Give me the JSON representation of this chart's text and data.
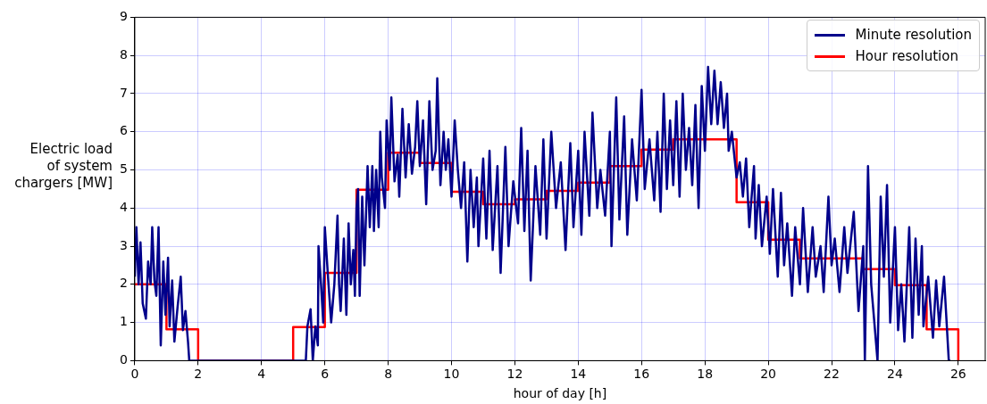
{
  "chart_data": {
    "type": "line",
    "xlabel": "hour of day [h]",
    "ylabel": "Electric load\nof system\nchargers [MW]",
    "xlim": [
      0,
      26.85
    ],
    "xticks": [
      0,
      2,
      4,
      6,
      8,
      10,
      12,
      14,
      16,
      18,
      20,
      22,
      24,
      26
    ],
    "ylim": [
      0,
      9
    ],
    "yticks": [
      0,
      1,
      2,
      3,
      4,
      5,
      6,
      7,
      8,
      9
    ],
    "grid": true,
    "legend": "top right",
    "series": [
      {
        "name": "Minute resolution",
        "color": "#00008b",
        "x": [
          0,
          0.05,
          0.12,
          0.18,
          0.25,
          0.35,
          0.42,
          0.5,
          0.55,
          0.62,
          0.68,
          0.75,
          0.82,
          0.9,
          0.97,
          1.05,
          1.1,
          1.18,
          1.25,
          1.35,
          1.45,
          1.52,
          1.6,
          1.68,
          1.72,
          5.4,
          5.45,
          5.55,
          5.62,
          5.7,
          5.78,
          5.8,
          5.88,
          5.95,
          6.0,
          6.1,
          6.2,
          6.3,
          6.4,
          6.45,
          6.5,
          6.6,
          6.68,
          6.75,
          6.82,
          6.9,
          6.95,
          7.0,
          7.05,
          7.1,
          7.18,
          7.25,
          7.35,
          7.42,
          7.5,
          7.55,
          7.62,
          7.7,
          7.75,
          7.8,
          7.9,
          7.95,
          8.05,
          8.1,
          8.2,
          8.3,
          8.35,
          8.45,
          8.55,
          8.65,
          8.75,
          8.85,
          8.92,
          9.0,
          9.1,
          9.2,
          9.3,
          9.4,
          9.5,
          9.55,
          9.65,
          9.75,
          9.82,
          9.9,
          10.0,
          10.1,
          10.2,
          10.3,
          10.4,
          10.5,
          10.6,
          10.7,
          10.8,
          10.85,
          11.0,
          11.1,
          11.2,
          11.3,
          11.45,
          11.55,
          11.7,
          11.8,
          11.95,
          12.1,
          12.2,
          12.3,
          12.4,
          12.5,
          12.65,
          12.8,
          12.9,
          13.0,
          13.15,
          13.3,
          13.45,
          13.6,
          13.75,
          13.85,
          14.0,
          14.1,
          14.2,
          14.35,
          14.45,
          14.6,
          14.7,
          14.85,
          15.0,
          15.05,
          15.2,
          15.3,
          15.45,
          15.55,
          15.7,
          15.85,
          16.0,
          16.1,
          16.25,
          16.4,
          16.5,
          16.6,
          16.7,
          16.8,
          16.9,
          17.0,
          17.1,
          17.2,
          17.3,
          17.4,
          17.5,
          17.6,
          17.7,
          17.8,
          17.9,
          18.0,
          18.1,
          18.2,
          18.3,
          18.4,
          18.5,
          18.6,
          18.7,
          18.75,
          18.85,
          19.0,
          19.1,
          19.2,
          19.3,
          19.4,
          19.55,
          19.6,
          19.7,
          19.8,
          19.95,
          20.05,
          20.15,
          20.3,
          20.4,
          20.5,
          20.6,
          20.75,
          20.85,
          21.0,
          21.1,
          21.25,
          21.4,
          21.5,
          21.65,
          21.75,
          21.9,
          22.0,
          22.1,
          22.25,
          22.4,
          22.5,
          22.7,
          22.85,
          23.0,
          23.05,
          23.15,
          23.25,
          23.45,
          23.55,
          23.65,
          23.75,
          23.85,
          24.0,
          24.1,
          24.2,
          24.3,
          24.45,
          24.55,
          24.65,
          24.75,
          24.85,
          24.9,
          25.05,
          25.2,
          25.3,
          25.4,
          25.55,
          25.7,
          25.75
        ],
        "values": [
          2.2,
          3.5,
          2.0,
          3.1,
          1.5,
          1.1,
          2.6,
          2.0,
          3.5,
          2.1,
          1.7,
          3.5,
          0.4,
          2.6,
          1.2,
          2.7,
          0.9,
          2.1,
          0.5,
          1.4,
          2.2,
          0.8,
          1.3,
          0.5,
          0,
          0,
          0.9,
          1.35,
          0,
          0.9,
          0.4,
          3.0,
          2.0,
          1.0,
          3.5,
          2.2,
          1.0,
          2.0,
          3.8,
          2.0,
          1.3,
          3.2,
          1.2,
          3.6,
          2.0,
          2.9,
          1.7,
          4.0,
          4.5,
          1.7,
          4.3,
          2.5,
          5.1,
          3.5,
          5.1,
          3.4,
          5.0,
          3.5,
          6.0,
          4.8,
          4.0,
          6.3,
          5.0,
          6.9,
          4.7,
          5.4,
          4.3,
          6.6,
          4.8,
          6.2,
          4.9,
          5.6,
          6.8,
          5.1,
          6.3,
          4.1,
          6.8,
          5.0,
          5.5,
          7.4,
          4.6,
          6.0,
          5.0,
          5.8,
          4.3,
          6.3,
          5.0,
          4.0,
          5.2,
          2.6,
          5.0,
          3.5,
          4.8,
          3.0,
          5.3,
          3.2,
          5.5,
          2.9,
          5.1,
          2.3,
          5.6,
          3.0,
          4.7,
          3.6,
          6.1,
          3.4,
          5.5,
          2.1,
          5.1,
          3.3,
          5.8,
          3.2,
          6.0,
          4.0,
          5.2,
          2.9,
          5.7,
          3.5,
          5.5,
          3.3,
          6.0,
          3.8,
          6.5,
          4.0,
          5.0,
          3.8,
          6.0,
          3.0,
          6.9,
          3.7,
          6.4,
          3.3,
          5.8,
          4.2,
          7.1,
          4.5,
          5.8,
          4.2,
          6.0,
          3.9,
          7.0,
          4.5,
          6.3,
          4.6,
          6.8,
          4.3,
          7.0,
          5.0,
          6.1,
          4.6,
          6.7,
          4.0,
          7.2,
          5.5,
          7.7,
          6.2,
          7.6,
          6.2,
          7.3,
          6.1,
          7.0,
          5.5,
          6.0,
          4.8,
          5.2,
          4.3,
          5.3,
          3.5,
          5.1,
          3.2,
          4.6,
          3.0,
          4.3,
          2.8,
          4.5,
          2.2,
          4.4,
          2.5,
          3.6,
          1.7,
          3.5,
          2.0,
          4.0,
          1.8,
          3.5,
          2.2,
          3.0,
          1.8,
          4.3,
          2.5,
          3.2,
          1.8,
          3.5,
          2.3,
          3.9,
          1.3,
          3.0,
          0,
          5.1,
          2.0,
          0,
          4.3,
          2.2,
          4.6,
          1.0,
          3.5,
          0.8,
          2.0,
          0.5,
          3.5,
          0.6,
          3.2,
          1.2,
          3.0,
          0.9,
          2.2,
          0.6,
          2.1,
          0.9,
          2.2,
          0,
          0
        ]
      },
      {
        "name": "Hour resolution",
        "color": "#ff0000",
        "type": "step",
        "x": [
          0,
          1,
          2,
          3,
          4,
          5,
          6,
          7,
          8,
          9,
          10,
          11,
          12,
          13,
          14,
          15,
          16,
          17,
          18,
          19,
          20,
          21,
          22,
          23,
          24,
          25,
          26
        ],
        "values": [
          2.0,
          0.82,
          0,
          0,
          0,
          0.88,
          2.3,
          4.48,
          5.45,
          5.18,
          4.43,
          4.1,
          4.23,
          4.45,
          4.67,
          5.1,
          5.53,
          5.8,
          5.8,
          4.15,
          3.17,
          2.68,
          2.68,
          2.4,
          1.98,
          0.82,
          0
        ]
      }
    ]
  }
}
